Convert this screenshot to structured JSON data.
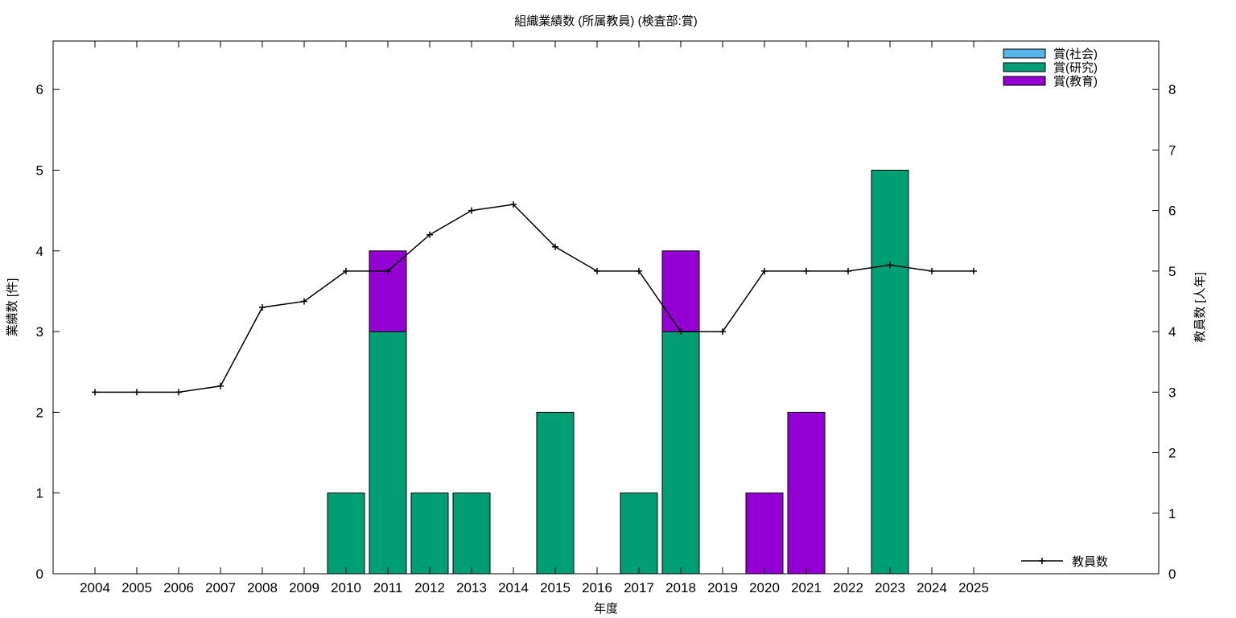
{
  "chart_data": {
    "type": "bar",
    "title": "組織業績数 (所属教員) (検査部:賞)",
    "xlabel": "年度",
    "ylabel": "業績数 [件]",
    "y2label": "教員数 [人年]",
    "ylim": [
      0,
      6.6
    ],
    "y2lim": [
      0,
      8.8
    ],
    "yticks": [
      0,
      1,
      2,
      3,
      4,
      5,
      6
    ],
    "y2ticks": [
      0,
      1,
      2,
      3,
      4,
      5,
      6,
      7,
      8
    ],
    "categories": [
      "2004",
      "2005",
      "2006",
      "2007",
      "2008",
      "2009",
      "2010",
      "2011",
      "2012",
      "2013",
      "2014",
      "2015",
      "2016",
      "2017",
      "2018",
      "2019",
      "2020",
      "2021",
      "2022",
      "2023",
      "2024",
      "2025"
    ],
    "stacked": true,
    "series": [
      {
        "name": "賞(社会)",
        "color": "#56b4e9",
        "values": [
          0,
          0,
          0,
          0,
          0,
          0,
          0,
          0,
          0,
          0,
          0,
          0,
          0,
          0,
          0,
          0,
          0,
          0,
          0,
          0,
          0,
          0
        ]
      },
      {
        "name": "賞(研究)",
        "color": "#009e73",
        "values": [
          0,
          0,
          0,
          0,
          0,
          0,
          1,
          3,
          1,
          1,
          0,
          2,
          0,
          1,
          3,
          0,
          0,
          0,
          0,
          5,
          0,
          0
        ]
      },
      {
        "name": "賞(教育)",
        "color": "#9400d3",
        "values": [
          0,
          0,
          0,
          0,
          0,
          0,
          0,
          1,
          0,
          0,
          0,
          0,
          0,
          0,
          1,
          0,
          1,
          2,
          0,
          0,
          0,
          0
        ]
      }
    ],
    "line": {
      "name": "教員数",
      "axis": "y2",
      "values": [
        3,
        3,
        3,
        3.1,
        4.4,
        4.5,
        5,
        5,
        5.6,
        6,
        6.1,
        5.4,
        5,
        5,
        4,
        4,
        5,
        5,
        5,
        5.1,
        5,
        5
      ]
    },
    "legend_position": "top-right",
    "line_legend_position": "bottom-right",
    "grid": false
  }
}
